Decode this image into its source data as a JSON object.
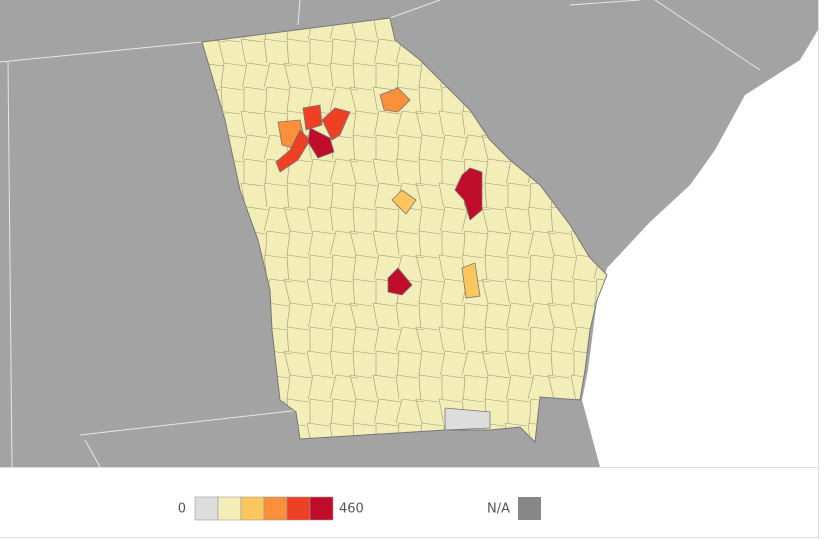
{
  "legend": {
    "min": 0,
    "max": 460,
    "na_label": "N/A",
    "colors": [
      "#dddddd",
      "#f3edb8",
      "#fbc75c",
      "#fb8f3c",
      "#ee4025",
      "#c00d2b"
    ],
    "na_color": "#878787"
  }
}
